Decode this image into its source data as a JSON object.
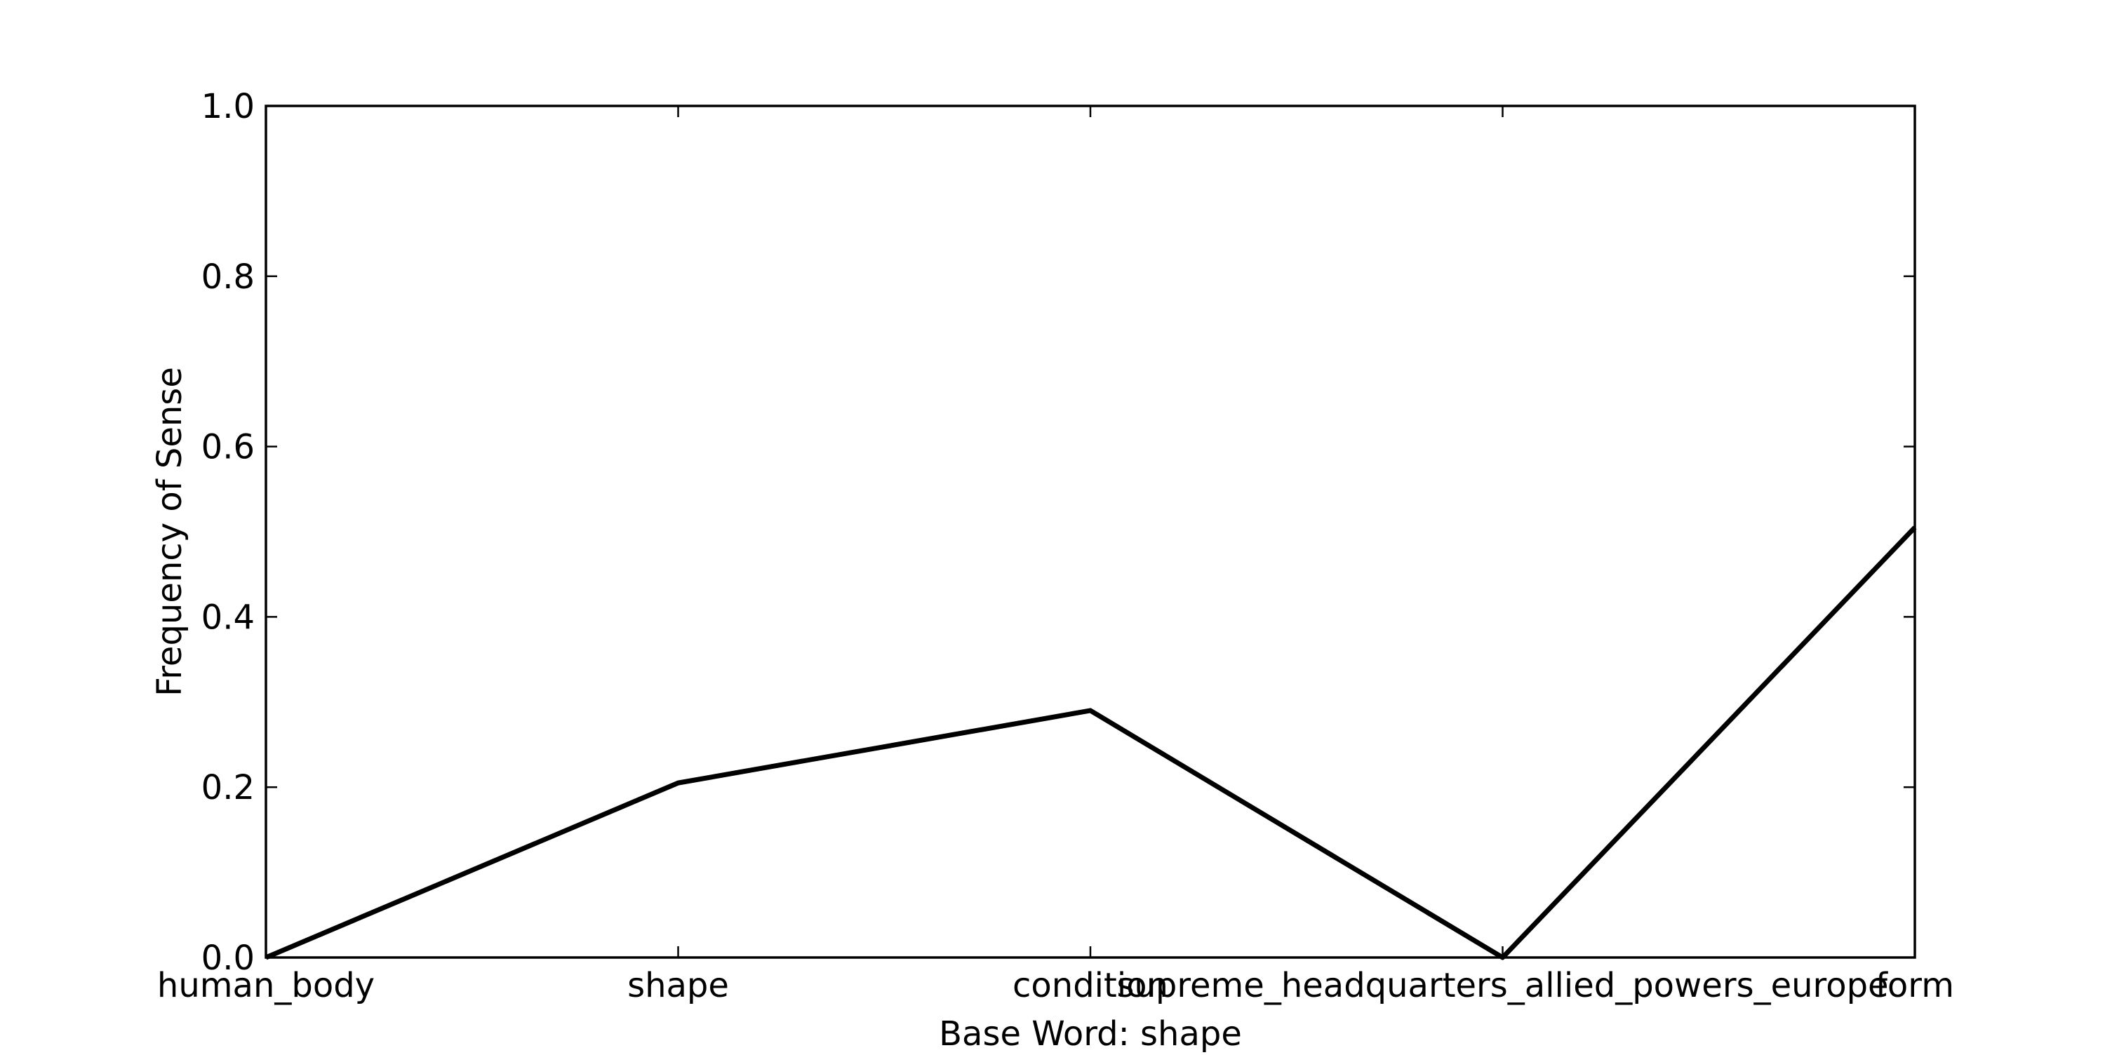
{
  "chart_data": {
    "type": "line",
    "title": "",
    "xlabel": "Base Word: shape",
    "ylabel": "Frequency of Sense",
    "categories": [
      "human_body",
      "shape",
      "condition",
      "supreme_headquarters_allied_powers_europe",
      "form"
    ],
    "series": [
      {
        "values": [
          0.0,
          0.205,
          0.29,
          0.0,
          0.505
        ],
        "color": "#000000"
      }
    ],
    "ylim": [
      0,
      1.0
    ],
    "yticks": [
      0.0,
      0.2,
      0.4,
      0.6,
      0.8,
      1.0
    ],
    "ytick_labels": [
      "0.0",
      "0.2",
      "0.4",
      "0.6",
      "0.8",
      "1.0"
    ],
    "grid": false,
    "legend": "none"
  }
}
